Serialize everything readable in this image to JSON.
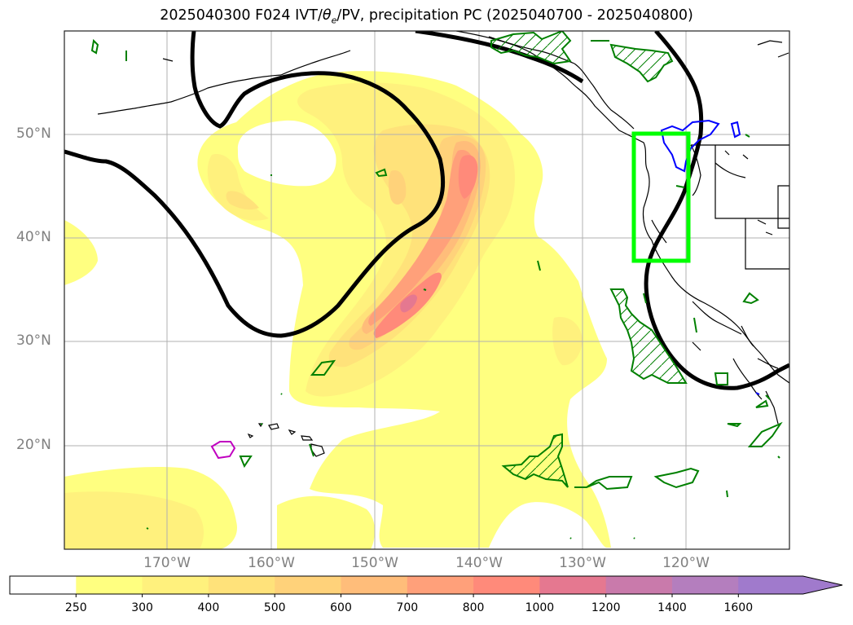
{
  "title": {
    "prefix": "2025040300 F024 IVT/",
    "theta": "θ",
    "theta_sub": "e",
    "suffix": "/PV, precipitation PC (2025040700 - 2025040800)"
  },
  "map": {
    "lat_labels": [
      "50°N",
      "40°N",
      "30°N",
      "20°N"
    ],
    "lon_labels": [
      "170°W",
      "160°W",
      "150°W",
      "140°W",
      "130°W",
      "120°W"
    ]
  },
  "colorbar": {
    "ticks": [
      "250",
      "300",
      "400",
      "500",
      "600",
      "700",
      "800",
      "1000",
      "1200",
      "1400",
      "1600"
    ],
    "colors": [
      "#ffffff",
      "#ffff80",
      "#fff17d",
      "#ffe27a",
      "#ffd27a",
      "#ffbd7a",
      "#ffa07a",
      "#ff8a7a",
      "#e57890",
      "#c97aab",
      "#b47ebe",
      "#a07acc"
    ],
    "extend": "max"
  },
  "colors": {
    "box": "#00ff00",
    "contour_black": "#000000",
    "contour_green": "#008000",
    "contour_blue": "#0000ff",
    "contour_magenta": "#c000c0"
  }
}
